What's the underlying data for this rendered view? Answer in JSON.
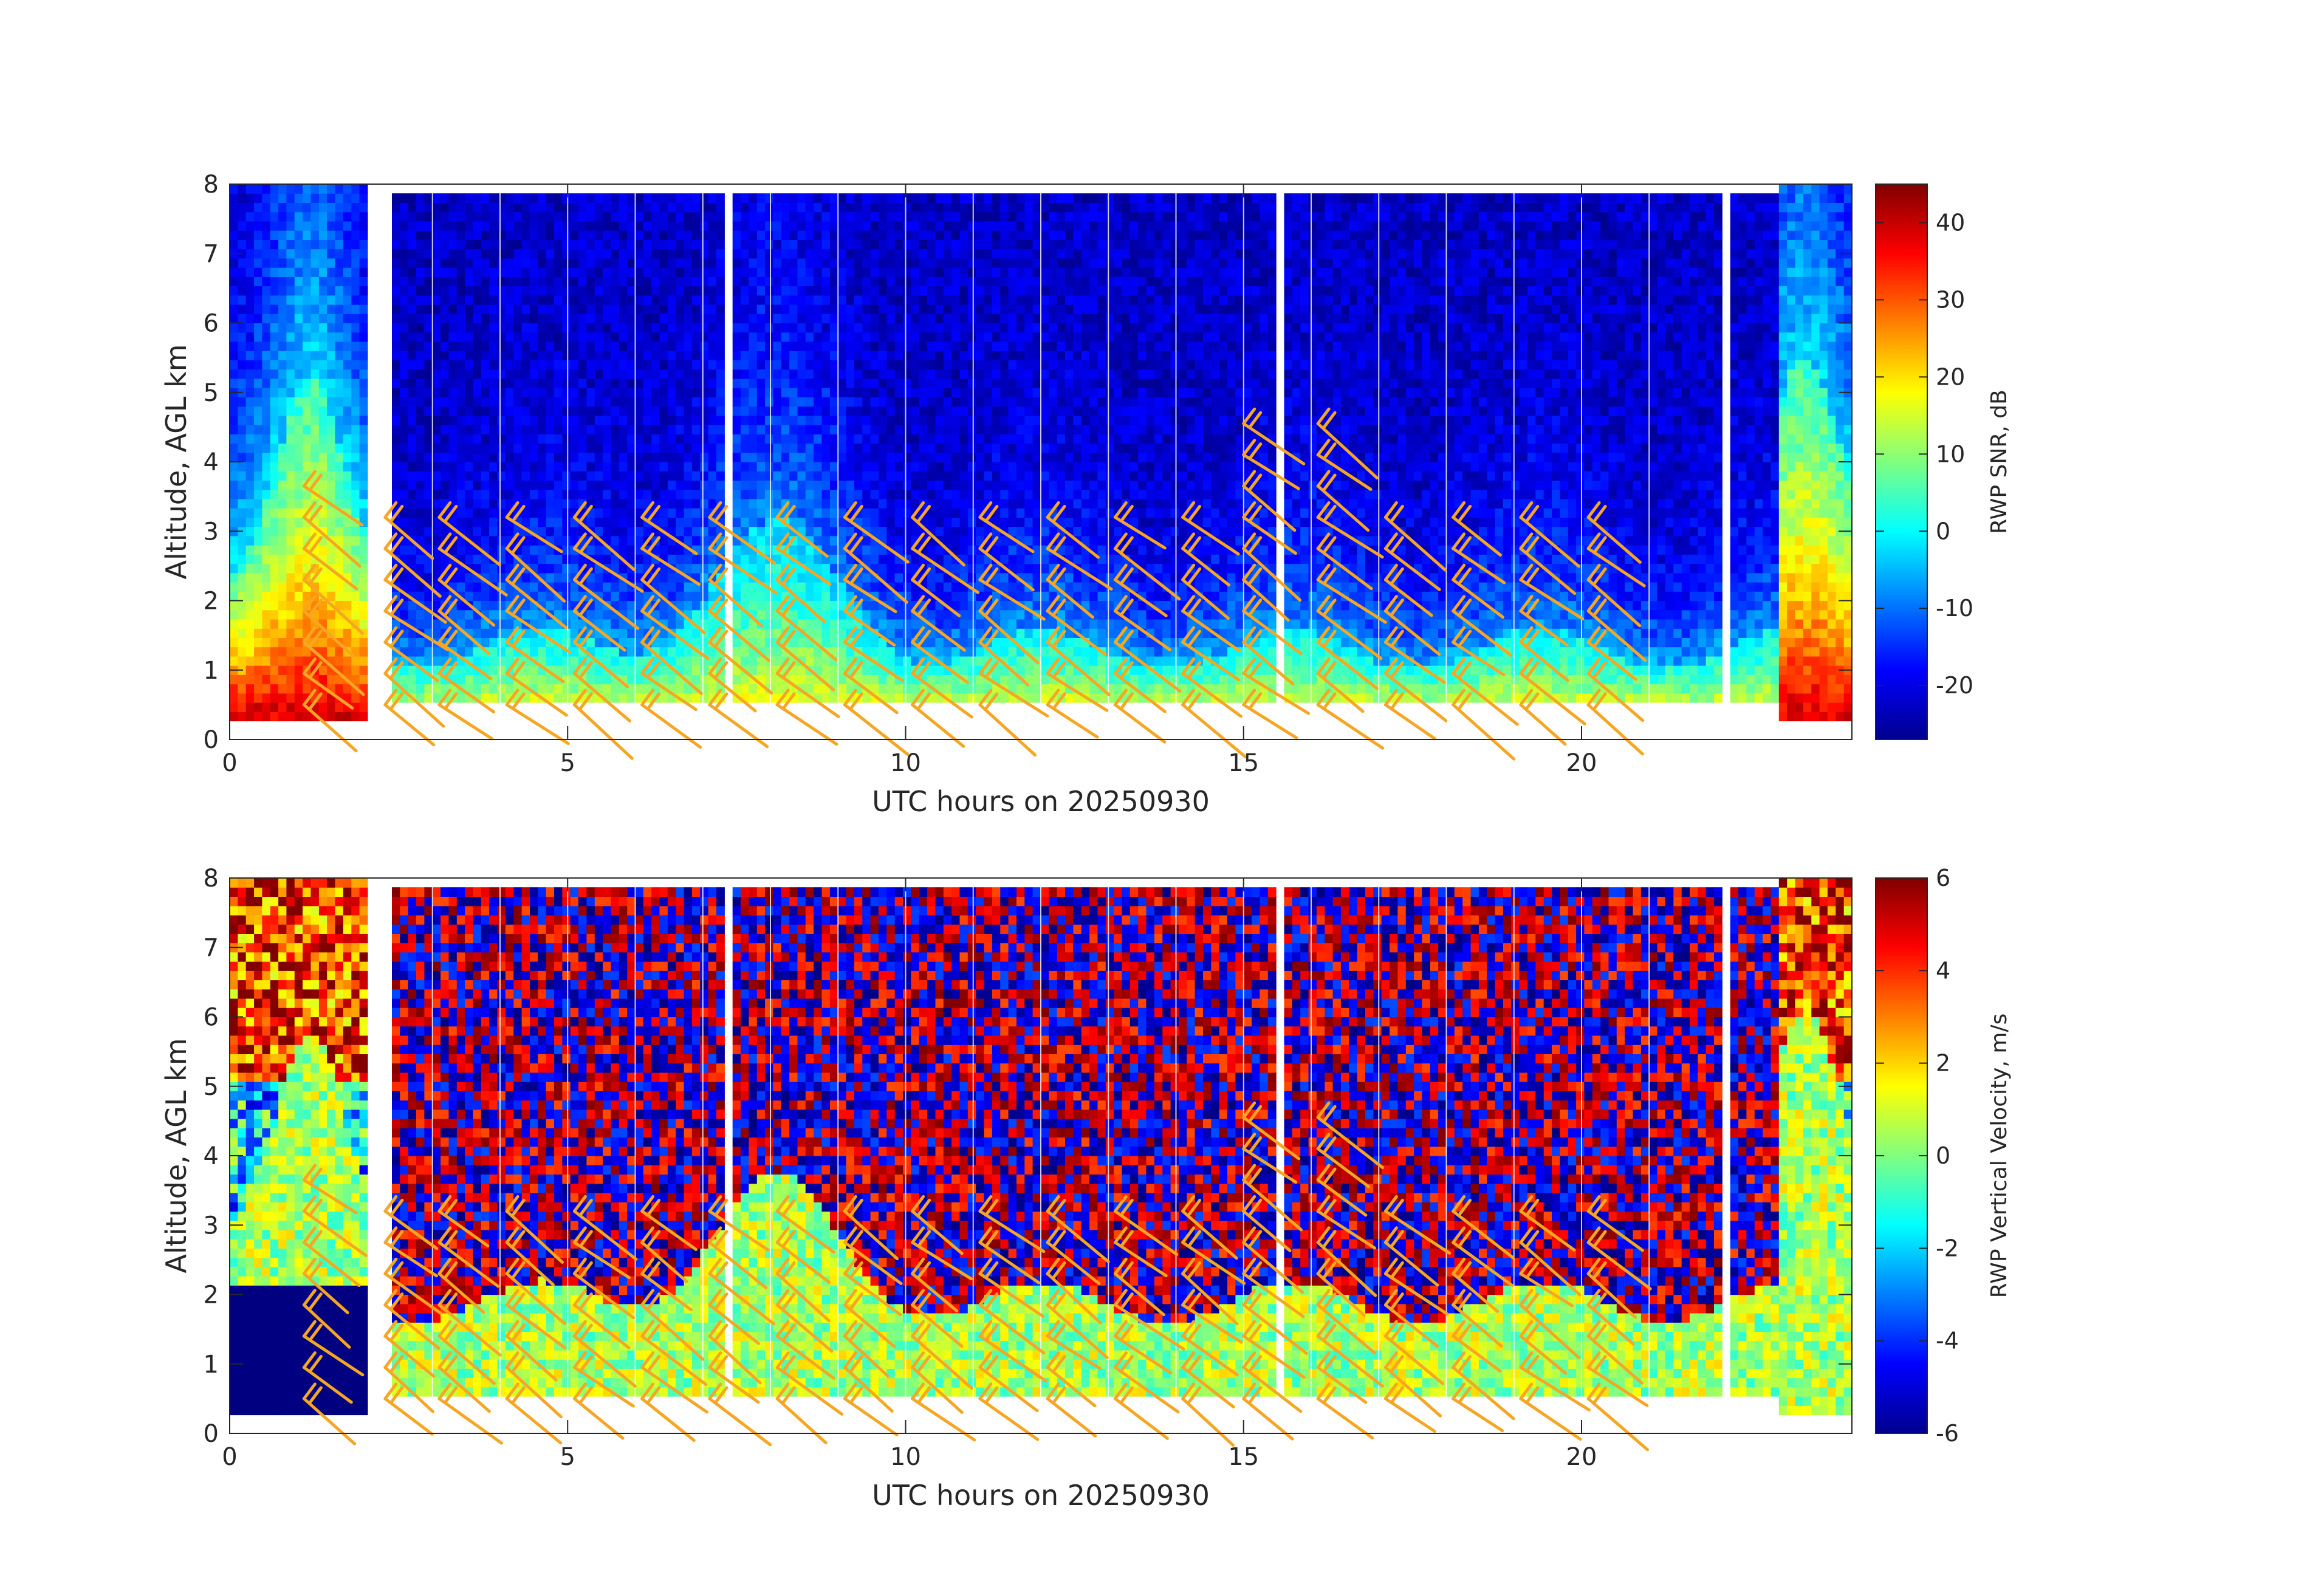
{
  "chart_data": [
    {
      "type": "heatmap",
      "xlabel": "UTC hours on 20250930",
      "ylabel": "Altitude, AGL km",
      "xlim": [
        0,
        24
      ],
      "ylim": [
        0,
        8
      ],
      "xticks": [
        "0",
        "5",
        "10",
        "15",
        "20"
      ],
      "yticks": [
        "0",
        "1",
        "2",
        "3",
        "4",
        "5",
        "6",
        "7",
        "8"
      ],
      "colorbar": {
        "label": "RWP SNR, dB",
        "range": [
          -27,
          45
        ],
        "ticks": [
          "-20",
          "-10",
          "0",
          "10",
          "20",
          "30",
          "40"
        ],
        "colormap": "jet"
      },
      "data_gaps_hours": [
        [
          2.05,
          2.4
        ],
        [
          7.3,
          7.45
        ],
        [
          15.5,
          15.65
        ],
        [
          22.05,
          22.2
        ]
      ],
      "wind_barb_color": "#f5a623"
    },
    {
      "type": "heatmap",
      "xlabel": "UTC hours on 20250930",
      "ylabel": "Altitude, AGL km",
      "xlim": [
        0,
        24
      ],
      "ylim": [
        0,
        8
      ],
      "xticks": [
        "0",
        "5",
        "10",
        "15",
        "20"
      ],
      "yticks": [
        "0",
        "1",
        "2",
        "3",
        "4",
        "5",
        "6",
        "7",
        "8"
      ],
      "colorbar": {
        "label": "RWP Vertical Velocity, m/s",
        "range": [
          -6,
          6
        ],
        "ticks": [
          "-6",
          "-4",
          "-2",
          "0",
          "2",
          "4",
          "6"
        ],
        "colormap": "jet"
      },
      "data_gaps_hours": [
        [
          2.05,
          2.4
        ],
        [
          7.3,
          7.45
        ],
        [
          15.5,
          15.65
        ],
        [
          22.05,
          22.2
        ]
      ],
      "wind_barb_color": "#f5a623"
    }
  ]
}
